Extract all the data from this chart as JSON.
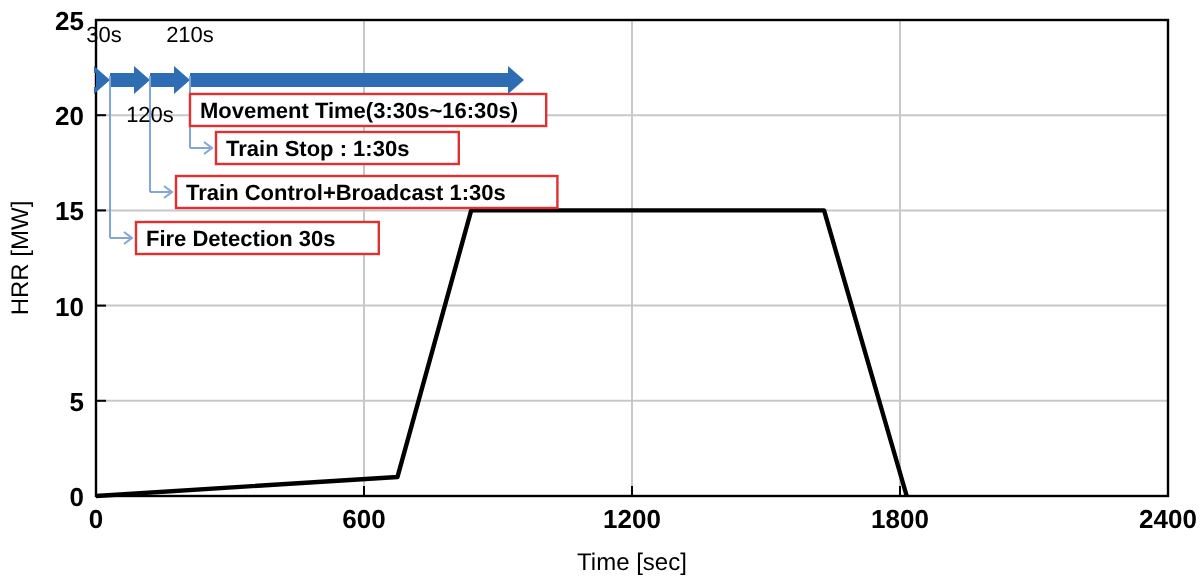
{
  "chart_data": {
    "type": "line",
    "xlabel": "Time [sec]",
    "ylabel": "HRR [MW]",
    "x": [
      0,
      675,
      840,
      1630,
      1815
    ],
    "series": [
      {
        "color": "#000000",
        "values": [
          0,
          1,
          15,
          15,
          0
        ]
      }
    ],
    "xlim": [
      0,
      2400
    ],
    "xticks": [
      0,
      600,
      1200,
      1800,
      2400
    ],
    "ylim": [
      0,
      25
    ],
    "yticks": [
      0,
      5,
      10,
      15,
      20,
      25
    ],
    "grid": true,
    "marker": "none",
    "line_style": "solid",
    "annotations": [
      "30s",
      "120s",
      "210s",
      "Movement Time(3:30s~16:30s)",
      "Train Stop : 1:30s",
      "Train Control+Broadcast 1:30s",
      "Fire Detection 30s"
    ]
  }
}
